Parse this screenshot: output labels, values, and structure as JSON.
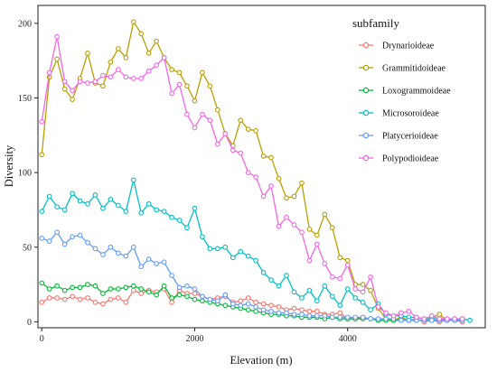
{
  "chart_data": {
    "type": "line",
    "xlabel": "Elevation (m)",
    "ylabel": "Diversity",
    "xlim": [
      -50,
      5800
    ],
    "ylim": [
      -4,
      212
    ],
    "xticks": [
      0,
      2000,
      4000
    ],
    "yticks": [
      0,
      50,
      100,
      150,
      200
    ],
    "legend": {
      "title": "subfamily",
      "position": "top-right"
    },
    "grid": false,
    "series": [
      {
        "name": "Drynarioideae",
        "color": "#F8766D",
        "x": [
          0,
          100,
          200,
          300,
          400,
          500,
          600,
          700,
          800,
          900,
          1000,
          1100,
          1200,
          1300,
          1400,
          1500,
          1600,
          1700,
          1800,
          1900,
          2000,
          2100,
          2200,
          2300,
          2400,
          2500,
          2600,
          2700,
          2800,
          2900,
          3000,
          3100,
          3200,
          3300,
          3400,
          3500,
          3600,
          3700,
          3800,
          3900,
          4000,
          4100,
          4200,
          4300,
          4400,
          4500,
          4600,
          4700,
          4800,
          4900,
          5000,
          5100,
          5200,
          5300,
          5400,
          5500
        ],
        "y": [
          13,
          16,
          16,
          15,
          17,
          15,
          16,
          13,
          12,
          15,
          16,
          13,
          21,
          19,
          21,
          20,
          22,
          13,
          21,
          19,
          19,
          17,
          15,
          16,
          17,
          13,
          14,
          16,
          13,
          12,
          11,
          10,
          8,
          9,
          8,
          7,
          7,
          5,
          5,
          6,
          2,
          2,
          3,
          2,
          1,
          1,
          1,
          2,
          1,
          2,
          0,
          1,
          0,
          1,
          1,
          0
        ]
      },
      {
        "name": "Grammitidoideae",
        "color": "#B79F00",
        "x": [
          0,
          100,
          200,
          300,
          400,
          500,
          600,
          700,
          800,
          900,
          1000,
          1100,
          1200,
          1300,
          1400,
          1500,
          1600,
          1700,
          1800,
          1900,
          2000,
          2100,
          2200,
          2300,
          2400,
          2500,
          2600,
          2700,
          2800,
          2900,
          3000,
          3100,
          3200,
          3300,
          3400,
          3500,
          3600,
          3700,
          3800,
          3900,
          4000,
          4100,
          4200,
          4300,
          4400,
          4500,
          4600,
          4700,
          4800,
          4900,
          5000,
          5100,
          5200,
          5300,
          5400,
          5500
        ],
        "y": [
          112,
          164,
          176,
          156,
          149,
          163,
          180,
          160,
          158,
          174,
          183,
          177,
          201,
          193,
          180,
          188,
          177,
          169,
          167,
          158,
          148,
          167,
          158,
          142,
          126,
          118,
          135,
          129,
          128,
          111,
          110,
          96,
          83,
          84,
          93,
          62,
          58,
          72,
          63,
          43,
          41,
          25,
          25,
          21,
          9,
          2,
          1,
          3,
          1,
          1,
          1,
          3,
          5,
          1,
          2,
          1
        ]
      },
      {
        "name": "Loxogrammoideae",
        "color": "#00BA38",
        "x": [
          0,
          100,
          200,
          300,
          400,
          500,
          600,
          700,
          800,
          900,
          1000,
          1100,
          1200,
          1300,
          1400,
          1500,
          1600,
          1700,
          1800,
          1900,
          2000,
          2100,
          2200,
          2300,
          2400,
          2500,
          2600,
          2700,
          2800,
          2900,
          3000,
          3100,
          3200,
          3300,
          3400,
          3500,
          3600,
          3700,
          3800,
          3900,
          4000,
          4100,
          4200,
          4300,
          4400,
          4500,
          4600,
          4700,
          4800,
          4900,
          5000,
          5100,
          5200,
          5300,
          5400,
          5500
        ],
        "y": [
          26,
          22,
          24,
          21,
          23,
          23,
          25,
          24,
          19,
          22,
          22,
          23,
          24,
          22,
          20,
          18,
          24,
          16,
          18,
          17,
          15,
          14,
          13,
          12,
          11,
          10,
          9,
          8,
          7,
          6,
          5,
          5,
          4,
          4,
          3,
          3,
          3,
          2,
          3,
          2,
          2,
          2,
          2,
          2,
          1,
          1,
          1,
          1,
          1,
          1,
          1,
          1,
          1,
          1,
          1,
          1
        ]
      },
      {
        "name": "Microsoroideae",
        "color": "#00BFC4",
        "x": [
          0,
          100,
          200,
          300,
          400,
          500,
          600,
          700,
          800,
          900,
          1000,
          1100,
          1200,
          1300,
          1400,
          1500,
          1600,
          1700,
          1800,
          1900,
          2000,
          2100,
          2200,
          2300,
          2400,
          2500,
          2600,
          2700,
          2800,
          2900,
          3000,
          3100,
          3200,
          3300,
          3400,
          3500,
          3600,
          3700,
          3800,
          3900,
          4000,
          4100,
          4200,
          4300,
          4400,
          4500,
          4600,
          4700,
          4800,
          4900,
          5000,
          5100,
          5200,
          5300,
          5400,
          5500,
          5600
        ],
        "y": [
          74,
          84,
          77,
          75,
          86,
          81,
          79,
          85,
          76,
          82,
          78,
          74,
          95,
          73,
          79,
          75,
          74,
          70,
          68,
          63,
          76,
          57,
          49,
          49,
          50,
          43,
          47,
          44,
          41,
          33,
          28,
          24,
          31,
          20,
          16,
          21,
          14,
          24,
          17,
          11,
          22,
          16,
          13,
          8,
          12,
          5,
          4,
          4,
          3,
          3,
          2,
          2,
          2,
          1,
          1,
          2,
          1
        ]
      },
      {
        "name": "Platycerioideae",
        "color": "#619CFF",
        "x": [
          0,
          100,
          200,
          300,
          400,
          500,
          600,
          700,
          800,
          900,
          1000,
          1100,
          1200,
          1300,
          1400,
          1500,
          1600,
          1700,
          1800,
          1900,
          2000,
          2100,
          2200,
          2300,
          2400,
          2500,
          2600,
          2700,
          2800,
          2900,
          3000,
          3100,
          3200,
          3300,
          3400,
          3500,
          3600,
          3700,
          3800,
          3900,
          4000,
          4100,
          4200,
          4300,
          4400,
          4500,
          4600,
          4700,
          4800,
          4900,
          5000,
          5100,
          5200,
          5300,
          5400,
          5500
        ],
        "y": [
          56,
          54,
          60,
          52,
          57,
          58,
          53,
          49,
          45,
          50,
          46,
          44,
          50,
          37,
          42,
          39,
          40,
          31,
          23,
          24,
          22,
          17,
          15,
          14,
          18,
          12,
          11,
          12,
          10,
          8,
          7,
          6,
          6,
          5,
          5,
          4,
          4,
          4,
          3,
          3,
          3,
          3,
          3,
          2,
          2,
          2,
          2,
          1,
          1,
          1,
          1,
          1,
          1,
          1,
          1,
          1
        ]
      },
      {
        "name": "Polypodioideae",
        "color": "#F564E3",
        "x": [
          0,
          100,
          200,
          300,
          400,
          500,
          600,
          700,
          800,
          900,
          1000,
          1100,
          1200,
          1300,
          1400,
          1500,
          1600,
          1700,
          1800,
          1900,
          2000,
          2100,
          2200,
          2300,
          2400,
          2500,
          2600,
          2700,
          2800,
          2900,
          3000,
          3100,
          3200,
          3300,
          3400,
          3500,
          3600,
          3700,
          3800,
          3900,
          4000,
          4100,
          4200,
          4300,
          4400,
          4500,
          4600,
          4700,
          4800,
          4900,
          5000,
          5100,
          5200,
          5300,
          5400,
          5500
        ],
        "y": [
          134,
          167,
          191,
          161,
          155,
          161,
          160,
          161,
          165,
          164,
          169,
          164,
          163,
          163,
          168,
          172,
          177,
          153,
          159,
          139,
          130,
          139,
          135,
          119,
          126,
          115,
          113,
          100,
          97,
          84,
          91,
          64,
          70,
          65,
          60,
          41,
          52,
          39,
          30,
          29,
          38,
          22,
          20,
          30,
          10,
          6,
          4,
          6,
          7,
          3,
          2,
          4,
          2,
          2,
          2,
          2
        ]
      }
    ]
  }
}
